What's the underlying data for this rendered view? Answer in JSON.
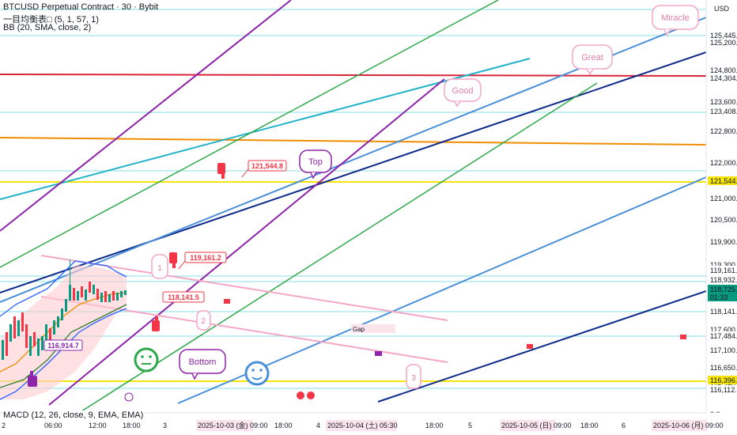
{
  "legend": {
    "symbol": "BTCUSD Perpetual Contract · 30 · Bybit",
    "ichimoku": "一目均衡表□ (5, 1, 57, 1)",
    "bb": "BB (20, SMA, close, 2)",
    "macd": "MACD (12, 26, close, 9, EMA, EMA)"
  },
  "currency": "USD",
  "colors": {
    "price_up": "#089981",
    "price_down": "#f23645",
    "red_line": "#d9253a",
    "orange_line": "#f08c00",
    "yellow_line": "#f5e50a",
    "cyan_line": "#20b2c8",
    "navy_line": "#0d2a8a",
    "blue_line": "#4a90d9",
    "green_line": "#2fa84a",
    "purple_line": "#8e24aa",
    "pink_line": "#f4a6c6",
    "bb_line": "#2962ff",
    "bb_fill": "#ffcdd2",
    "tenkan": "#ff9800",
    "kijun": "#2e7d32"
  },
  "chart_data": {
    "type": "candlestick",
    "y_axis": {
      "ticks": [
        "125,200.0",
        "124,800.0",
        "123,600.0",
        "122,800.0",
        "122,000.0",
        "121,000.0",
        "120,500.0",
        "119,900.0",
        "119,300.0",
        "117,600.0",
        "117,100.0",
        "116,650.0",
        "116,250.0",
        "0.0"
      ],
      "price_labels": [
        {
          "text": "125,445.4",
          "style": "plain"
        },
        {
          "text": "124,304.0",
          "style": "red"
        },
        {
          "text": "123,408.9",
          "style": "plain"
        },
        {
          "text": "121,544.8",
          "style": "yellow"
        },
        {
          "text": "119,161.2",
          "style": "plain"
        },
        {
          "text": "118,932.4",
          "style": "plain"
        },
        {
          "text": "118,725.5",
          "style": "green"
        },
        {
          "text": "01:33",
          "style": "green"
        },
        {
          "text": "118,141.5",
          "style": "plain"
        },
        {
          "text": "117,484.9",
          "style": "plain"
        },
        {
          "text": "116,396.9",
          "style": "yellow"
        },
        {
          "text": "116,112.2",
          "style": "plain"
        }
      ]
    },
    "x_axis": {
      "ticks": [
        "2",
        "06:00",
        "12:00",
        "18:00",
        "3",
        "18:00",
        "4",
        "18:00",
        "5",
        "18:00",
        "6",
        "18:00"
      ],
      "highlighted": [
        "2025-10-03 (金) 09:00",
        "2025-10-04 (土) 05:30",
        "2025-10-05 (日) 09:00",
        "2025-10-06 (月) 09:00"
      ]
    },
    "annotations": {
      "price_callouts": [
        "121,544.8",
        "119,161.2",
        "118,141.5",
        "116,914.7"
      ],
      "bubbles": [
        "Miracle",
        "Great",
        "Good",
        "Top",
        "Bottom",
        "Gap",
        "1",
        "2",
        "3"
      ]
    }
  }
}
